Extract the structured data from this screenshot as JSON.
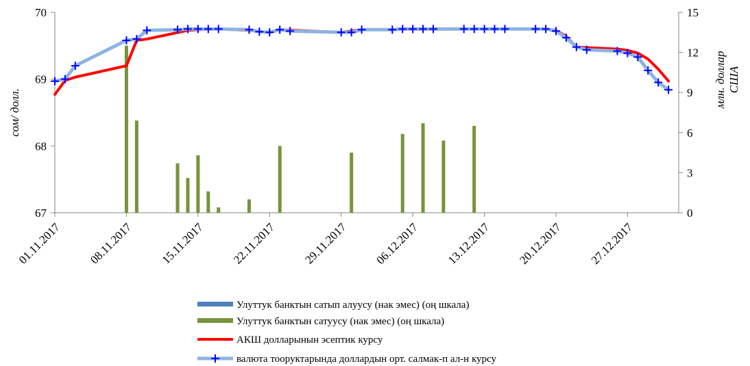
{
  "chart_data": {
    "type": "bar+line",
    "y_left": {
      "label": "сом/ долл.",
      "ylim": [
        67,
        70
      ],
      "ticks": [
        "67",
        "68",
        "69",
        "70"
      ]
    },
    "y_right": {
      "label_line1": "млн. доллар",
      "label_line2": "США",
      "ylim": [
        0,
        15
      ],
      "ticks": [
        "0",
        "3",
        "6",
        "9",
        "12",
        "15"
      ]
    },
    "x_ticks": [
      "01.11.2017",
      "08.11.2017",
      "15.11.2017",
      "22.11.2017",
      "29.11.2017",
      "06.12.2017",
      "13.12.2017",
      "20.12.2017",
      "27.12.2017"
    ],
    "legend_position": "bottom",
    "series": [
      {
        "name": "Улуттук банктын сатып алуусу (нак эмес) (оң шкала)",
        "type": "bar",
        "axis": "right",
        "color": "#4f81bd",
        "points": []
      },
      {
        "name": "Улуттук банктын сатуусу (нак эмес) (оң шкала)",
        "type": "bar",
        "axis": "right",
        "color": "#77933c",
        "points": [
          {
            "x": "08.11.2017",
            "y": 12.5
          },
          {
            "x": "09.11.2017",
            "y": 6.9
          },
          {
            "x": "13.11.2017",
            "y": 3.7
          },
          {
            "x": "14.11.2017",
            "y": 2.6
          },
          {
            "x": "15.11.2017",
            "y": 4.3
          },
          {
            "x": "16.11.2017",
            "y": 1.6
          },
          {
            "x": "17.11.2017",
            "y": 0.4
          },
          {
            "x": "20.11.2017",
            "y": 1.0
          },
          {
            "x": "23.11.2017",
            "y": 5.0
          },
          {
            "x": "30.11.2017",
            "y": 4.5
          },
          {
            "x": "05.12.2017",
            "y": 5.9
          },
          {
            "x": "07.12.2017",
            "y": 6.7
          },
          {
            "x": "09.12.2017",
            "y": 5.4
          },
          {
            "x": "12.12.2017",
            "y": 6.5
          }
        ]
      },
      {
        "name": "АКШ долларынын эсептик курсу",
        "type": "line",
        "axis": "left",
        "color": "#ff0000",
        "points": [
          {
            "x": "01.11.2017",
            "y": 68.77
          },
          {
            "x": "02.11.2017",
            "y": 68.98
          },
          {
            "x": "03.11.2017",
            "y": 69.03
          },
          {
            "x": "08.11.2017",
            "y": 69.2
          },
          {
            "x": "09.11.2017",
            "y": 69.58
          },
          {
            "x": "10.11.2017",
            "y": 69.6
          },
          {
            "x": "14.11.2017",
            "y": 69.73
          },
          {
            "x": "15.11.2017",
            "y": 69.74
          },
          {
            "x": "17.11.2017",
            "y": 69.75
          },
          {
            "x": "20.11.2017",
            "y": 69.73
          },
          {
            "x": "21.11.2017",
            "y": 69.71
          },
          {
            "x": "22.11.2017",
            "y": 69.7
          },
          {
            "x": "23.11.2017",
            "y": 69.74
          },
          {
            "x": "29.11.2017",
            "y": 69.7
          },
          {
            "x": "30.11.2017",
            "y": 69.72
          },
          {
            "x": "01.12.2017",
            "y": 69.74
          },
          {
            "x": "12.12.2017",
            "y": 69.75
          },
          {
            "x": "19.12.2017",
            "y": 69.75
          },
          {
            "x": "20.12.2017",
            "y": 69.73
          },
          {
            "x": "21.12.2017",
            "y": 69.64
          },
          {
            "x": "22.12.2017",
            "y": 69.48
          },
          {
            "x": "26.12.2017",
            "y": 69.45
          },
          {
            "x": "27.12.2017",
            "y": 69.43
          },
          {
            "x": "28.12.2017",
            "y": 69.39
          },
          {
            "x": "29.12.2017",
            "y": 69.3
          },
          {
            "x": "30.12.2017",
            "y": 69.15
          },
          {
            "x": "31.12.2017",
            "y": 68.97
          }
        ]
      },
      {
        "name": "валюта тооруктарында доллардын орт. салмак-п ал-н курсу",
        "type": "line",
        "axis": "left",
        "color": "#8db4e2",
        "points": [
          {
            "x": "01.11.2017",
            "y": 68.97
          },
          {
            "x": "02.11.2017",
            "y": 69.0
          },
          {
            "x": "03.11.2017",
            "y": 69.2
          },
          {
            "x": "08.11.2017",
            "y": 69.58
          },
          {
            "x": "09.11.2017",
            "y": 69.6
          },
          {
            "x": "10.11.2017",
            "y": 69.73
          },
          {
            "x": "13.11.2017",
            "y": 69.74
          },
          {
            "x": "14.11.2017",
            "y": 69.75
          },
          {
            "x": "15.11.2017",
            "y": 69.75
          },
          {
            "x": "16.11.2017",
            "y": 69.75
          },
          {
            "x": "17.11.2017",
            "y": 69.75
          },
          {
            "x": "20.11.2017",
            "y": 69.74
          },
          {
            "x": "21.11.2017",
            "y": 69.71
          },
          {
            "x": "22.11.2017",
            "y": 69.7
          },
          {
            "x": "23.11.2017",
            "y": 69.74
          },
          {
            "x": "24.11.2017",
            "y": 69.72
          },
          {
            "x": "29.11.2017",
            "y": 69.7
          },
          {
            "x": "30.11.2017",
            "y": 69.7
          },
          {
            "x": "01.12.2017",
            "y": 69.74
          },
          {
            "x": "04.12.2017",
            "y": 69.74
          },
          {
            "x": "05.12.2017",
            "y": 69.75
          },
          {
            "x": "06.12.2017",
            "y": 69.75
          },
          {
            "x": "07.12.2017",
            "y": 69.75
          },
          {
            "x": "08.12.2017",
            "y": 69.75
          },
          {
            "x": "11.12.2017",
            "y": 69.75
          },
          {
            "x": "12.12.2017",
            "y": 69.75
          },
          {
            "x": "13.12.2017",
            "y": 69.75
          },
          {
            "x": "14.12.2017",
            "y": 69.75
          },
          {
            "x": "15.12.2017",
            "y": 69.75
          },
          {
            "x": "18.12.2017",
            "y": 69.75
          },
          {
            "x": "19.12.2017",
            "y": 69.75
          },
          {
            "x": "20.12.2017",
            "y": 69.72
          },
          {
            "x": "21.12.2017",
            "y": 69.62
          },
          {
            "x": "22.12.2017",
            "y": 69.48
          },
          {
            "x": "23.12.2017",
            "y": 69.44
          },
          {
            "x": "26.12.2017",
            "y": 69.42
          },
          {
            "x": "27.12.2017",
            "y": 69.39
          },
          {
            "x": "28.12.2017",
            "y": 69.33
          },
          {
            "x": "29.12.2017",
            "y": 69.13
          },
          {
            "x": "30.12.2017",
            "y": 68.95
          },
          {
            "x": "31.12.2017",
            "y": 68.84
          }
        ]
      }
    ]
  }
}
